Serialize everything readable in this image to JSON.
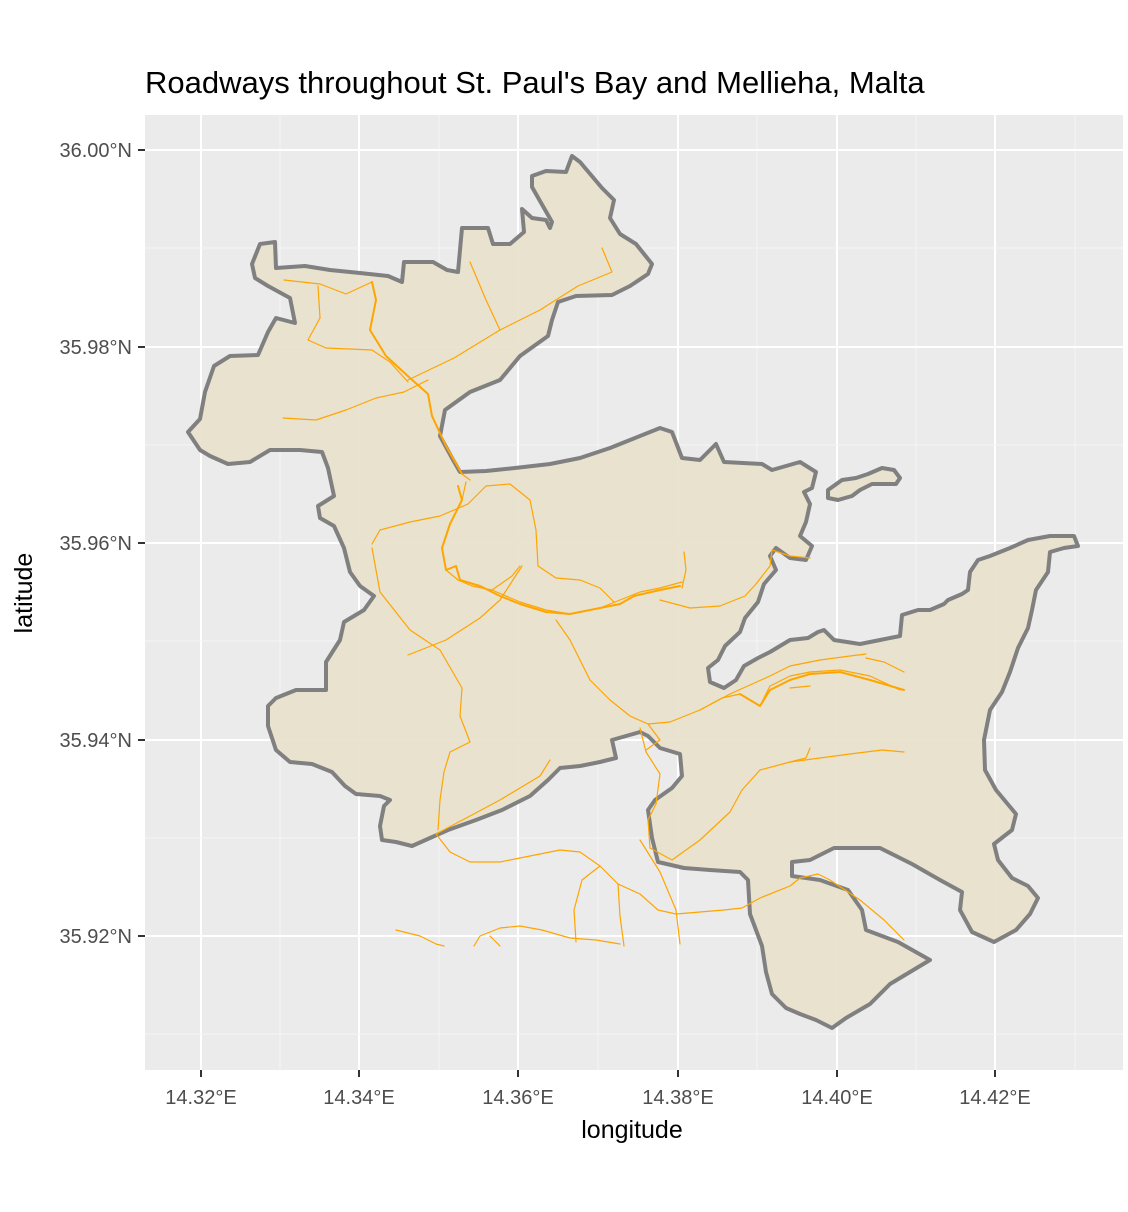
{
  "map": {
    "title": "Roadways throughout St. Paul's Bay and Mellieha, Malta",
    "xlabel": "longitude",
    "ylabel": "latitude",
    "x_ticks": [
      {
        "value": 14.32,
        "label": "14.32°E"
      },
      {
        "value": 14.34,
        "label": "14.34°E"
      },
      {
        "value": 14.36,
        "label": "14.36°E"
      },
      {
        "value": 14.38,
        "label": "14.38°E"
      },
      {
        "value": 14.4,
        "label": "14.40°E"
      },
      {
        "value": 14.42,
        "label": "14.42°E"
      }
    ],
    "y_ticks": [
      {
        "value": 36.0,
        "label": "36.00°N"
      },
      {
        "value": 35.98,
        "label": "35.98°N"
      },
      {
        "value": 35.96,
        "label": "35.96°N"
      },
      {
        "value": 35.94,
        "label": "35.94°N"
      },
      {
        "value": 35.92,
        "label": "35.92°N"
      }
    ],
    "xlim": [
      14.3132,
      14.3555
    ],
    "ylim": [
      35.9085,
      36.0035
    ],
    "panel_background": "#ebebeb",
    "grid_color": "#ffffff",
    "boundary_fill": "#e8e1cd",
    "boundary_stroke": "#808080",
    "road_color": "#ffa500",
    "grid": true,
    "legend": "none"
  }
}
